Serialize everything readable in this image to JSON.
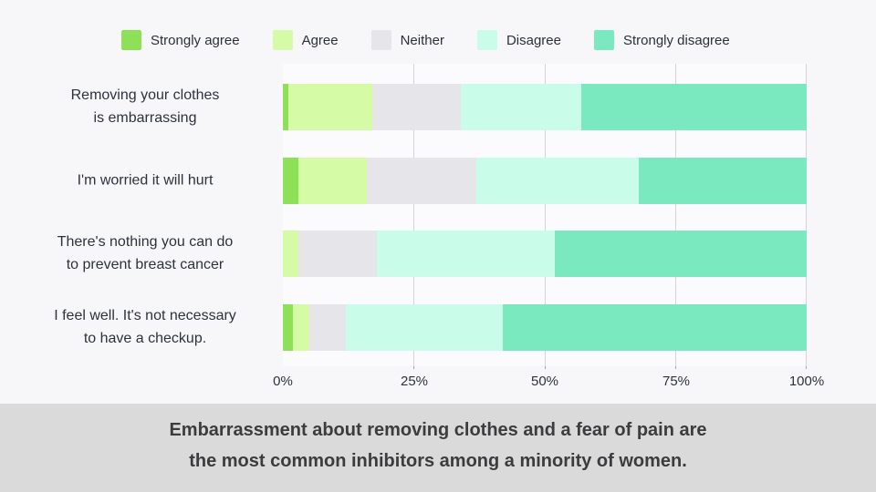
{
  "chart_data": {
    "type": "bar",
    "orientation": "horizontal-stacked",
    "categories": [
      "Removing your clothes is embarrassing",
      "I'm worried it will hurt",
      "There's nothing you can do to prevent breast cancer",
      "I feel well. It's not necessary to have a checkup."
    ],
    "category_lines": [
      [
        "Removing your clothes",
        "is embarrassing"
      ],
      [
        "I'm worried it will hurt"
      ],
      [
        "There's nothing you can do",
        "to prevent breast cancer"
      ],
      [
        "I feel well. It's not necessary",
        "to have a checkup."
      ]
    ],
    "series": [
      {
        "name": "Strongly agree",
        "color": "#8ee058",
        "values": [
          1,
          3,
          0,
          2
        ]
      },
      {
        "name": "Agree",
        "color": "#d6fba6",
        "values": [
          16,
          13,
          3,
          3
        ]
      },
      {
        "name": "Neither",
        "color": "#e6e5ea",
        "values": [
          17,
          21,
          15,
          7
        ]
      },
      {
        "name": "Disagree",
        "color": "#c9fce9",
        "values": [
          23,
          31,
          34,
          30
        ]
      },
      {
        "name": "Strongly disagree",
        "color": "#7be9c0",
        "values": [
          43,
          32,
          48,
          58
        ]
      }
    ],
    "x_ticks": [
      "0%",
      "25%",
      "50%",
      "75%",
      "100%"
    ],
    "xlim": [
      0,
      100
    ],
    "xlabel": "",
    "ylabel": "",
    "unit": "percent",
    "grid": "vertical",
    "legend_position": "top"
  },
  "caption": {
    "line1": "Embarrassment about removing clothes and a fear of pain are",
    "line2": "the most common inhibitors among a minority of women."
  },
  "palette": {
    "page_background": "#f7f7f9",
    "plot_field": "#fbfbfd",
    "gridline": "#d3d3d8",
    "text": "#2d323b",
    "caption_background": "#dadada",
    "caption_text": "#3c3c3e"
  }
}
